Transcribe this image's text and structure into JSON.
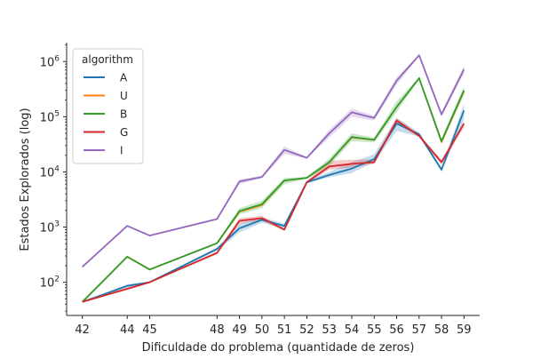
{
  "chart_data": {
    "type": "line",
    "title": "",
    "xlabel": "Dificuldade do problema (quantidade de zeros)",
    "ylabel": "Estados Explorados (log)",
    "yscale": "log",
    "ylim": [
      25,
      2200000
    ],
    "x": [
      42,
      44,
      45,
      48,
      49,
      50,
      51,
      52,
      53,
      54,
      55,
      56,
      57,
      58,
      59
    ],
    "xticks": [
      "42",
      "44",
      "45",
      "48",
      "49",
      "50",
      "51",
      "52",
      "53",
      "54",
      "55",
      "56",
      "57",
      "58",
      "59"
    ],
    "ytick_values": [
      100,
      1000,
      10000,
      100000,
      1000000
    ],
    "ytick_labels": [
      {
        "base": "10",
        "exp": "2"
      },
      {
        "base": "10",
        "exp": "3"
      },
      {
        "base": "10",
        "exp": "4"
      },
      {
        "base": "10",
        "exp": "5"
      },
      {
        "base": "10",
        "exp": "6"
      }
    ],
    "legend": {
      "title": "algorithm",
      "placement": "top-left"
    },
    "grid": false,
    "series": [
      {
        "name": "A",
        "color": "#1f77b4",
        "values": [
          44,
          86,
          100,
          400,
          950,
          1350,
          1050,
          6500,
          8800,
          11500,
          17000,
          75000,
          48000,
          11000,
          130000
        ],
        "band": [
          [
            44,
            44
          ],
          [
            80,
            92
          ],
          [
            98,
            102
          ],
          [
            370,
            430
          ],
          [
            800,
            1150
          ],
          [
            1200,
            1500
          ],
          [
            950,
            1150
          ],
          [
            6200,
            6800
          ],
          [
            8000,
            10000
          ],
          [
            9500,
            15000
          ],
          [
            15000,
            21000
          ],
          [
            55000,
            95000
          ],
          [
            44000,
            52000
          ],
          [
            10000,
            12000
          ],
          [
            90000,
            170000
          ]
        ]
      },
      {
        "name": "U",
        "color": "#ff7f0e",
        "values": [
          44,
          290,
          170,
          510,
          1900,
          2500,
          6900,
          7800,
          15000,
          42000,
          38000,
          150000,
          500000,
          35000,
          290000
        ],
        "band": null
      },
      {
        "name": "B",
        "color": "#2ca02c",
        "values": [
          44,
          290,
          170,
          510,
          1950,
          2600,
          7000,
          7800,
          15000,
          43000,
          38000,
          150000,
          500000,
          36000,
          300000
        ],
        "band": [
          [
            44,
            44
          ],
          [
            280,
            300
          ],
          [
            165,
            175
          ],
          [
            490,
            530
          ],
          [
            1700,
            2200
          ],
          [
            2200,
            3000
          ],
          [
            6000,
            7800
          ],
          [
            7500,
            8100
          ],
          [
            13000,
            17500
          ],
          [
            36000,
            50000
          ],
          [
            34000,
            42000
          ],
          [
            120000,
            190000
          ],
          [
            480000,
            520000
          ],
          [
            32000,
            40000
          ],
          [
            250000,
            360000
          ]
        ]
      },
      {
        "name": "G",
        "color": "#d62728",
        "values": [
          44,
          76,
          100,
          340,
          1300,
          1450,
          900,
          6500,
          12500,
          14000,
          15000,
          85000,
          45000,
          15000,
          75000
        ],
        "band": [
          [
            44,
            44
          ],
          [
            72,
            80
          ],
          [
            98,
            102
          ],
          [
            320,
            360
          ],
          [
            1150,
            1450
          ],
          [
            1300,
            1600
          ],
          [
            850,
            950
          ],
          [
            6200,
            6800
          ],
          [
            11000,
            16000
          ],
          [
            12000,
            16500
          ],
          [
            14000,
            17000
          ],
          [
            75000,
            95000
          ],
          [
            42000,
            48000
          ],
          [
            13500,
            16500
          ],
          [
            65000,
            85000
          ]
        ]
      },
      {
        "name": "I",
        "color": "#9467bd",
        "values": [
          190,
          1050,
          700,
          1400,
          6700,
          8100,
          25000,
          18000,
          50000,
          120000,
          95000,
          450000,
          1300000,
          110000,
          720000
        ],
        "band": [
          [
            190,
            190
          ],
          [
            1020,
            1080
          ],
          [
            690,
            710
          ],
          [
            1370,
            1430
          ],
          [
            6000,
            7300
          ],
          [
            7700,
            8500
          ],
          [
            21000,
            29000
          ],
          [
            17500,
            18500
          ],
          [
            42000,
            58000
          ],
          [
            100000,
            140000
          ],
          [
            85000,
            105000
          ],
          [
            380000,
            520000
          ],
          [
            1250000,
            1350000
          ],
          [
            100000,
            120000
          ],
          [
            600000,
            850000
          ]
        ]
      }
    ]
  }
}
